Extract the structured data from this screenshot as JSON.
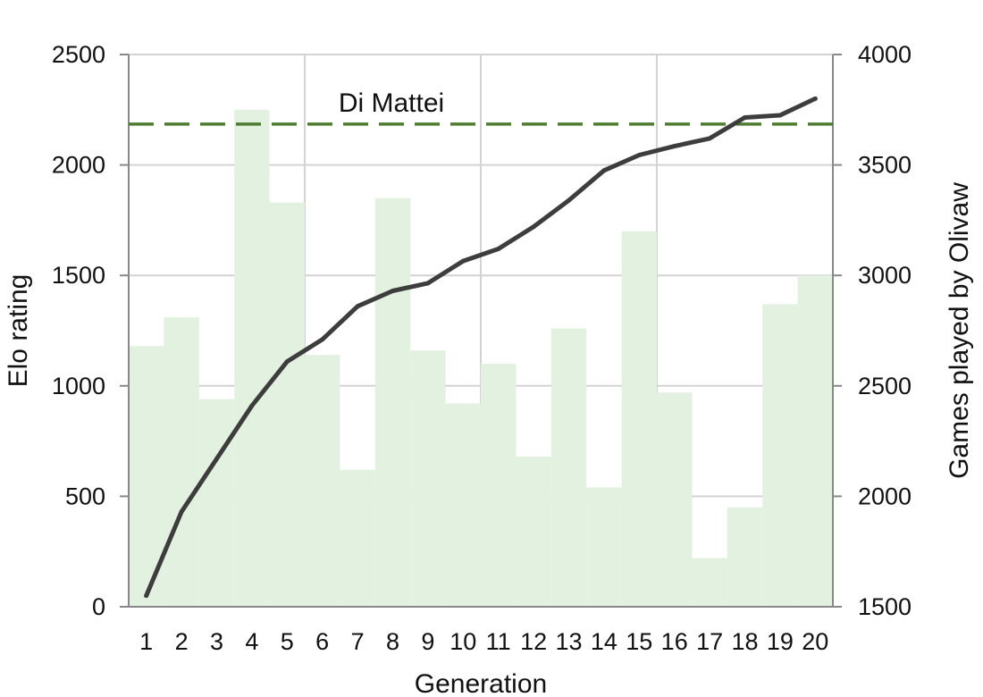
{
  "chart_data": {
    "type": "bar+line",
    "title": "",
    "xlabel": "Generation",
    "ylabel_left": "Elo rating",
    "ylabel_right": "Games played by Olivaw",
    "categories": [
      "1",
      "2",
      "3",
      "4",
      "5",
      "6",
      "7",
      "8",
      "9",
      "10",
      "11",
      "12",
      "13",
      "14",
      "15",
      "16",
      "17",
      "18",
      "19",
      "20"
    ],
    "ylim_left": [
      0,
      2500
    ],
    "ylim_right": [
      1500,
      4000
    ],
    "yticks_left": [
      "0",
      "500",
      "1000",
      "1500",
      "2000",
      "2500"
    ],
    "yticks_right": [
      "1500",
      "2000",
      "2500",
      "3000",
      "3500",
      "4000"
    ],
    "grid": "vertical every 5 generations, horizontal at left ticks",
    "series": [
      {
        "axis": "right",
        "kind": "bar",
        "color": "#e2f1e0",
        "values": [
          2680,
          2810,
          2440,
          3750,
          3330,
          2640,
          2120,
          3350,
          2660,
          2420,
          2600,
          2180,
          2760,
          2040,
          3200,
          2470,
          1720,
          1950,
          2870,
          3000
        ]
      },
      {
        "axis": "left",
        "kind": "line",
        "color": "#3d3d3d",
        "values": [
          50,
          430,
          670,
          910,
          1110,
          1210,
          1360,
          1430,
          1465,
          1565,
          1620,
          1720,
          1840,
          1975,
          2045,
          2085,
          2120,
          2215,
          2225,
          2300
        ]
      }
    ],
    "reference_line": {
      "label": "Di Mattei",
      "value": 2185,
      "axis": "left",
      "color": "#4e7d32",
      "style": "dashed"
    }
  }
}
